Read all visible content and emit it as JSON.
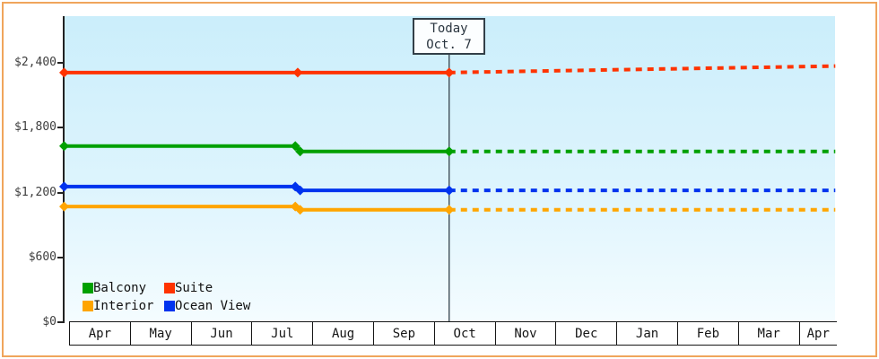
{
  "frame": {
    "border_color": "#f0a55c"
  },
  "chart_data": {
    "type": "line",
    "x_axis": {
      "tick_labels": [
        "Apr",
        "May",
        "Jun",
        "Jul",
        "Aug",
        "Sep",
        "Oct",
        "Nov",
        "Dec",
        "Jan",
        "Feb",
        "Mar",
        "Apr"
      ],
      "unit": "month",
      "note_x_values": "series x values are months after the first April tick"
    },
    "y_axis": {
      "tick_labels": [
        "$0",
        "$600",
        "$1,200",
        "$1,800",
        "$2,400"
      ],
      "tick_values": [
        0,
        600,
        1200,
        1800,
        2400
      ],
      "range": [
        0,
        2800
      ],
      "unit": "USD"
    },
    "today": {
      "label": "Today",
      "date": "Oct. 7",
      "month_offset": 6.25
    },
    "grid": "off",
    "legend_position": "inside-bottom-left",
    "series": [
      {
        "name": "Balcony",
        "color": "#00a000",
        "solid": [
          [
            0,
            1630
          ],
          [
            3.72,
            1630
          ],
          [
            3.8,
            1580
          ],
          [
            6.25,
            1580
          ]
        ],
        "dashed": [
          [
            6.25,
            1580
          ],
          [
            12.6,
            1580
          ]
        ],
        "markers": [
          [
            0,
            1630
          ],
          [
            3.72,
            1630
          ],
          [
            3.8,
            1580
          ],
          [
            6.25,
            1580
          ]
        ]
      },
      {
        "name": "Suite",
        "color": "#ff3300",
        "solid": [
          [
            0,
            2310
          ],
          [
            3.76,
            2310
          ],
          [
            6.25,
            2310
          ]
        ],
        "dashed": [
          [
            6.25,
            2310
          ],
          [
            12.6,
            2370
          ]
        ],
        "markers": [
          [
            0,
            2310
          ],
          [
            3.76,
            2310
          ],
          [
            6.25,
            2310
          ]
        ]
      },
      {
        "name": "Interior",
        "color": "#ffa500",
        "solid": [
          [
            0,
            1070
          ],
          [
            3.72,
            1070
          ],
          [
            3.8,
            1040
          ],
          [
            6.25,
            1040
          ]
        ],
        "dashed": [
          [
            6.25,
            1040
          ],
          [
            12.6,
            1040
          ]
        ],
        "markers": [
          [
            0,
            1070
          ],
          [
            3.72,
            1070
          ],
          [
            3.8,
            1040
          ],
          [
            6.25,
            1040
          ]
        ]
      },
      {
        "name": "Ocean View",
        "color": "#0033ee",
        "solid": [
          [
            0,
            1255
          ],
          [
            3.72,
            1255
          ],
          [
            3.8,
            1220
          ],
          [
            6.25,
            1220
          ]
        ],
        "dashed": [
          [
            6.25,
            1220
          ],
          [
            12.6,
            1220
          ]
        ],
        "markers": [
          [
            0,
            1255
          ],
          [
            3.72,
            1255
          ],
          [
            3.8,
            1220
          ],
          [
            6.25,
            1220
          ]
        ]
      }
    ]
  }
}
